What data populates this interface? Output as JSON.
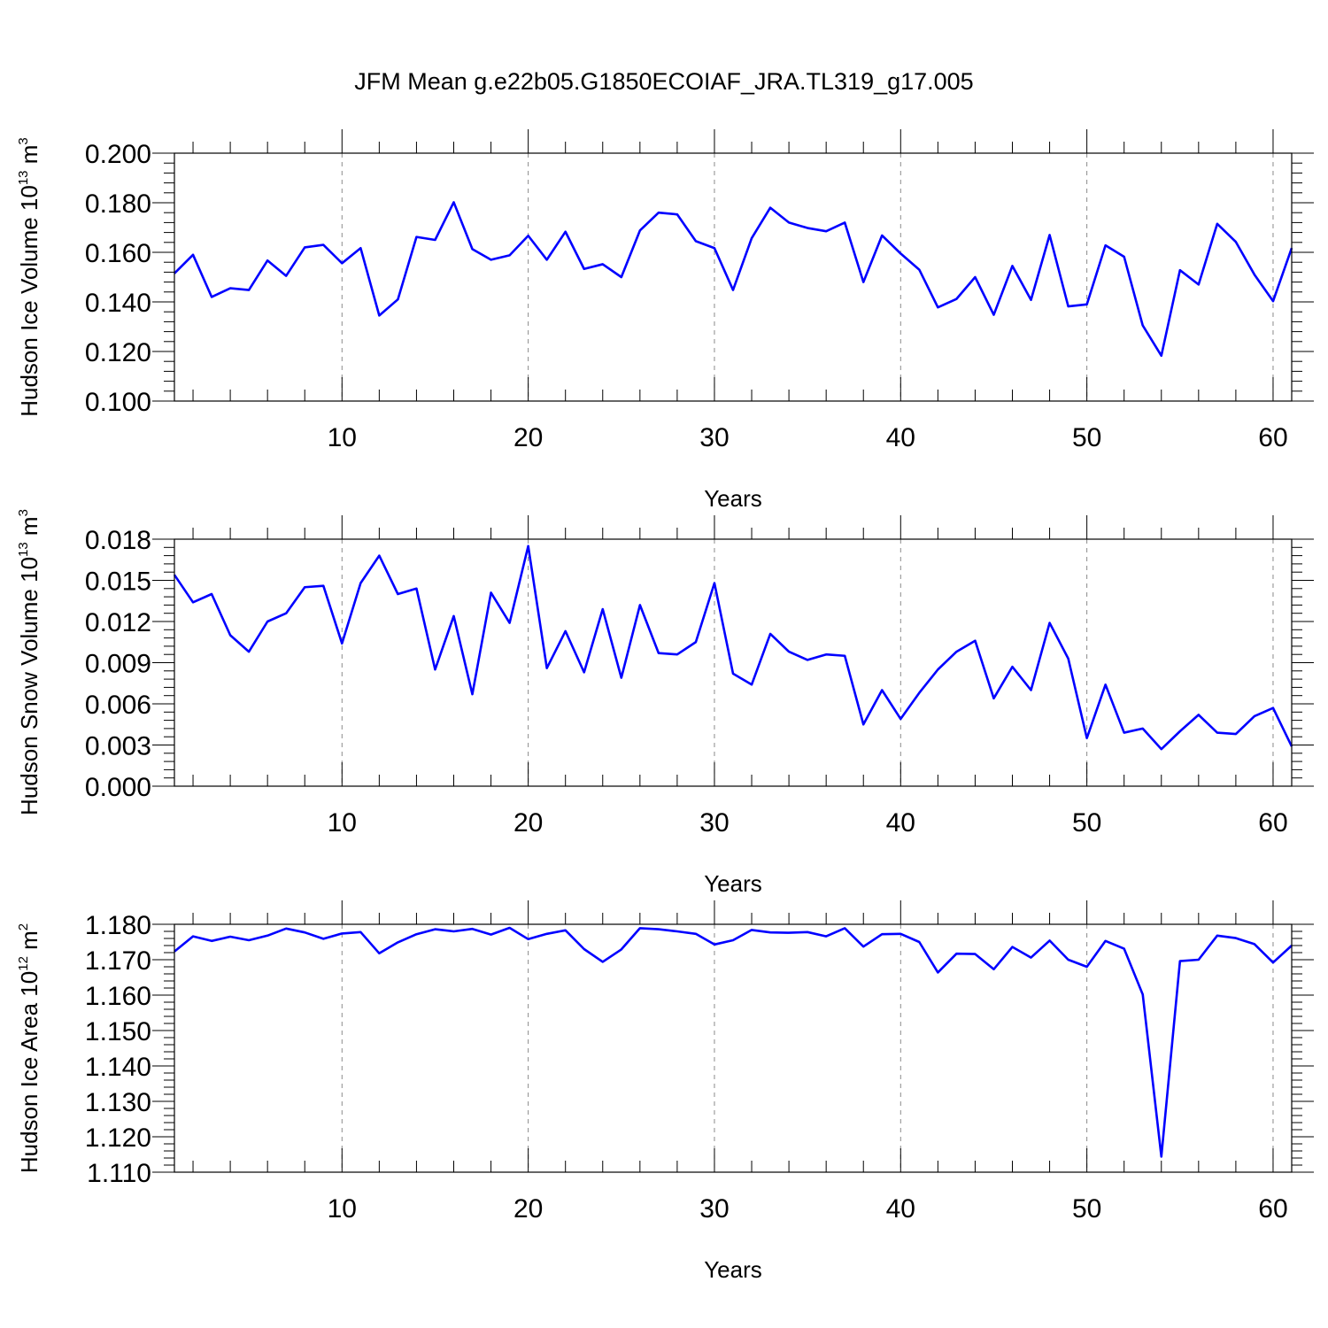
{
  "chart_data": {
    "type": "line",
    "title": "JFM Mean g.e22b05.G1850ECOIAF_JRA.TL319_g17.005",
    "line_color": "#0000ff",
    "panels": [
      {
        "ylabel_main": "Hudson Ice Volume 10",
        "ylabel_exp": "13",
        "ylabel_unit": " m",
        "ylabel_unit_exp": "3",
        "xlabel": "Years",
        "xlim": [
          1,
          61
        ],
        "ylim": [
          0.1,
          0.2
        ],
        "yticks": [
          0.1,
          0.12,
          0.14,
          0.16,
          0.18,
          0.2
        ],
        "ytick_labels": [
          "0.100",
          "0.120",
          "0.140",
          "0.160",
          "0.180",
          "0.200"
        ],
        "xticks": [
          10,
          20,
          30,
          40,
          50,
          60
        ],
        "xtick_labels": [
          "10",
          "20",
          "30",
          "40",
          "50",
          "60"
        ],
        "series": [
          {
            "name": "Hudson Ice Volume",
            "x": [
              1,
              2,
              3,
              4,
              5,
              6,
              7,
              8,
              9,
              10,
              11,
              12,
              13,
              14,
              15,
              16,
              17,
              18,
              19,
              20,
              21,
              22,
              23,
              24,
              25,
              26,
              27,
              28,
              29,
              30,
              31,
              32,
              33,
              34,
              35,
              36,
              37,
              38,
              39,
              40,
              41,
              42,
              43,
              44,
              45,
              46,
              47,
              48,
              49,
              50,
              51,
              52,
              53,
              54,
              55,
              56,
              57,
              58,
              59,
              60,
              61
            ],
            "values": [
              0.1515,
              0.159,
              0.142,
              0.1455,
              0.1448,
              0.1567,
              0.1505,
              0.162,
              0.163,
              0.1556,
              0.1617,
              0.1345,
              0.141,
              0.1662,
              0.165,
              0.1802,
              0.1613,
              0.157,
              0.1588,
              0.1667,
              0.157,
              0.1683,
              0.1533,
              0.1552,
              0.15,
              0.1688,
              0.176,
              0.1753,
              0.1645,
              0.1617,
              0.1448,
              0.1657,
              0.178,
              0.172,
              0.1698,
              0.1685,
              0.172,
              0.148,
              0.1668,
              0.1595,
              0.153,
              0.1378,
              0.1412,
              0.15,
              0.1348,
              0.1545,
              0.1408,
              0.167,
              0.1382,
              0.139,
              0.1628,
              0.1582,
              0.1305,
              0.1183,
              0.1528,
              0.147,
              0.1715,
              0.1642,
              0.151,
              0.1403,
              0.1617
            ]
          }
        ]
      },
      {
        "ylabel_main": "Hudson Snow Volume 10",
        "ylabel_exp": "13",
        "ylabel_unit": " m",
        "ylabel_unit_exp": "3",
        "xlabel": "Years",
        "xlim": [
          1,
          61
        ],
        "ylim": [
          0.0,
          0.018
        ],
        "yticks": [
          0.0,
          0.003,
          0.006,
          0.009,
          0.012,
          0.015,
          0.018
        ],
        "ytick_labels": [
          "0.000",
          "0.003",
          "0.006",
          "0.009",
          "0.012",
          "0.015",
          "0.018"
        ],
        "xticks": [
          10,
          20,
          30,
          40,
          50,
          60
        ],
        "xtick_labels": [
          "10",
          "20",
          "30",
          "40",
          "50",
          "60"
        ],
        "series": [
          {
            "name": "Hudson Snow Volume",
            "x": [
              1,
              2,
              3,
              4,
              5,
              6,
              7,
              8,
              9,
              10,
              11,
              12,
              13,
              14,
              15,
              16,
              17,
              18,
              19,
              20,
              21,
              22,
              23,
              24,
              25,
              26,
              27,
              28,
              29,
              30,
              31,
              32,
              33,
              34,
              35,
              36,
              37,
              38,
              39,
              40,
              41,
              42,
              43,
              44,
              45,
              46,
              47,
              48,
              49,
              50,
              51,
              52,
              53,
              54,
              55,
              56,
              57,
              58,
              59,
              60,
              61
            ],
            "values": [
              0.0154,
              0.0134,
              0.014,
              0.011,
              0.0098,
              0.012,
              0.0126,
              0.0145,
              0.0146,
              0.0104,
              0.0148,
              0.0168,
              0.014,
              0.0144,
              0.0085,
              0.0124,
              0.0067,
              0.0141,
              0.0119,
              0.0175,
              0.0086,
              0.0113,
              0.0083,
              0.0129,
              0.0079,
              0.0132,
              0.0097,
              0.0096,
              0.0105,
              0.0148,
              0.0082,
              0.0074,
              0.0111,
              0.0098,
              0.0092,
              0.0096,
              0.0095,
              0.0045,
              0.007,
              0.0049,
              0.0068,
              0.0085,
              0.0098,
              0.0106,
              0.0064,
              0.0087,
              0.007,
              0.0119,
              0.0093,
              0.0035,
              0.0074,
              0.0039,
              0.0042,
              0.0027,
              0.004,
              0.0052,
              0.0039,
              0.0038,
              0.0051,
              0.0057,
              0.0029
            ]
          }
        ]
      },
      {
        "ylabel_main": "Hudson Ice Area 10",
        "ylabel_exp": "12",
        "ylabel_unit": " m",
        "ylabel_unit_exp": "2",
        "xlabel": "Years",
        "xlim": [
          1,
          61
        ],
        "ylim": [
          1.11,
          1.18
        ],
        "yticks": [
          1.11,
          1.12,
          1.13,
          1.14,
          1.15,
          1.16,
          1.17,
          1.18
        ],
        "ytick_labels": [
          "1.110",
          "1.120",
          "1.130",
          "1.140",
          "1.150",
          "1.160",
          "1.170",
          "1.180"
        ],
        "xticks": [
          10,
          20,
          30,
          40,
          50,
          60
        ],
        "xtick_labels": [
          "10",
          "20",
          "30",
          "40",
          "50",
          "60"
        ],
        "series": [
          {
            "name": "Hudson Ice Area",
            "x": [
              1,
              2,
              3,
              4,
              5,
              6,
              7,
              8,
              9,
              10,
              11,
              12,
              13,
              14,
              15,
              16,
              17,
              18,
              19,
              20,
              21,
              22,
              23,
              24,
              25,
              26,
              27,
              28,
              29,
              30,
              31,
              32,
              33,
              34,
              35,
              36,
              37,
              38,
              39,
              40,
              41,
              42,
              43,
              44,
              45,
              46,
              47,
              48,
              49,
              50,
              51,
              52,
              53,
              54,
              55,
              56,
              57,
              58,
              59,
              60,
              61
            ],
            "values": [
              1.1723,
              1.1766,
              1.1753,
              1.1765,
              1.1755,
              1.1768,
              1.1788,
              1.1777,
              1.1759,
              1.1774,
              1.1778,
              1.1718,
              1.1749,
              1.1772,
              1.1786,
              1.178,
              1.1787,
              1.1771,
              1.179,
              1.1758,
              1.1773,
              1.1783,
              1.173,
              1.1694,
              1.1729,
              1.1789,
              1.1786,
              1.178,
              1.1773,
              1.1743,
              1.1755,
              1.1784,
              1.1777,
              1.1776,
              1.1778,
              1.1766,
              1.1789,
              1.1737,
              1.1772,
              1.1773,
              1.175,
              1.1664,
              1.1717,
              1.1716,
              1.1673,
              1.1736,
              1.1706,
              1.1754,
              1.17,
              1.168,
              1.1753,
              1.1731,
              1.1602,
              1.1144,
              1.1696,
              1.17,
              1.1768,
              1.1761,
              1.1744,
              1.1692,
              1.174
            ]
          }
        ]
      }
    ]
  }
}
